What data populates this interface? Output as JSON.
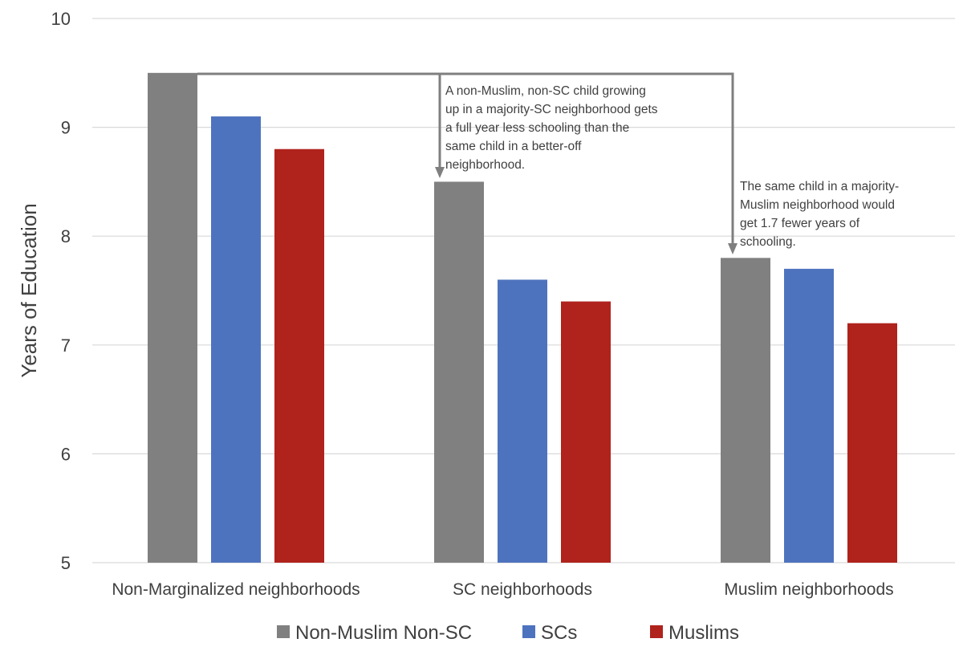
{
  "chart_data": {
    "type": "bar",
    "title": "",
    "xlabel": "",
    "ylabel": "Years of Education",
    "ylim": [
      5,
      10
    ],
    "yticks": [
      "5",
      "6",
      "7",
      "8",
      "9",
      "10"
    ],
    "grid": true,
    "legend_position": "bottom",
    "categories": [
      "Non-Marginalized neighborhoods",
      "SC neighborhoods",
      "Muslim neighborhoods"
    ],
    "series": [
      {
        "name": "Non-Muslim Non-SC",
        "color": "#808080",
        "values": [
          9.5,
          8.5,
          7.8
        ]
      },
      {
        "name": "SCs",
        "color": "#4e73be",
        "values": [
          9.1,
          7.6,
          7.7
        ]
      },
      {
        "name": "Muslims",
        "color": "#b0221c",
        "values": [
          8.8,
          7.4,
          7.2
        ]
      }
    ],
    "annotations": [
      {
        "lines": [
          "A non-Muslim, non-SC child growing",
          "up in a majority-SC neighborhood gets",
          "a full year less schooling than the",
          "same child in a better-off",
          "neighborhood."
        ]
      },
      {
        "lines": [
          "The same child in a majority-",
          "Muslim neighborhood would",
          "get 1.7 fewer years of",
          "schooling."
        ]
      }
    ]
  }
}
